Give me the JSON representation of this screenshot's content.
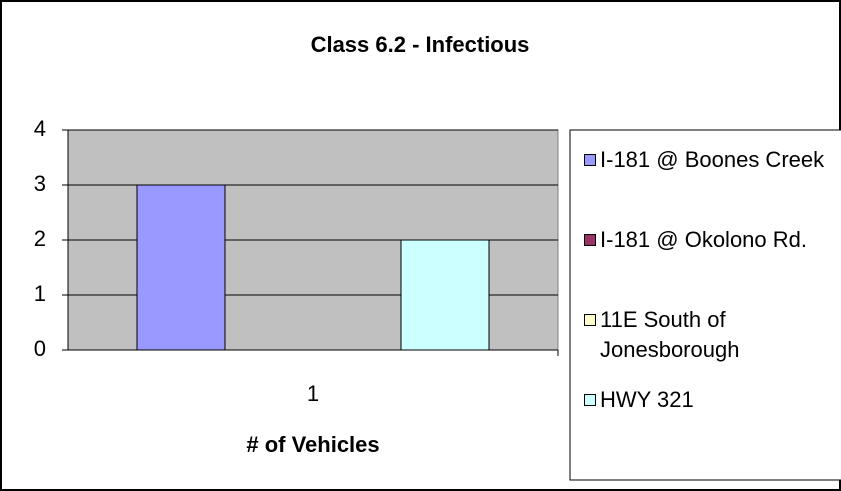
{
  "chart_data": {
    "type": "bar",
    "title": "Class 6.2 - Infectious",
    "x_label": "# of Vehicles",
    "categories": [
      "1"
    ],
    "series": [
      {
        "name": "I-181 @ Boones Creek",
        "color": "#9999ff",
        "values": [
          3
        ]
      },
      {
        "name": "I-181 @ Okolono Rd.",
        "color": "#993366",
        "values": [
          0
        ]
      },
      {
        "name": "11E South of Jonesborough",
        "color": "#ffffcc",
        "values": [
          0
        ]
      },
      {
        "name": "HWY 321",
        "color": "#ccffff",
        "values": [
          2
        ]
      }
    ],
    "ylim": [
      0,
      4
    ],
    "yticks": [
      0,
      1,
      2,
      3,
      4
    ],
    "grid": true,
    "legend": "right"
  }
}
